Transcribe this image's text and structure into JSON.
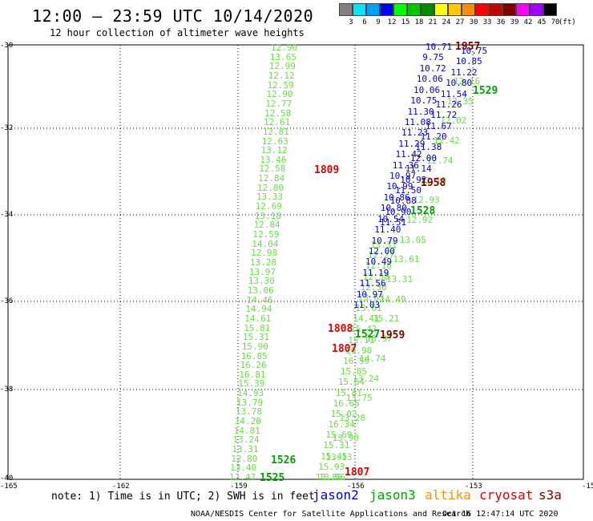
{
  "title": "12:00 – 23:59 UTC 10/14/2020",
  "subtitle": "12 hour collection of altimeter wave heights",
  "legend": {
    "unit": "(ft)",
    "bins": [
      {
        "label": "3",
        "color": "#808080"
      },
      {
        "label": "6",
        "color": "#00e6ff"
      },
      {
        "label": "9",
        "color": "#00a0ff"
      },
      {
        "label": "12",
        "color": "#0000ff"
      },
      {
        "label": "15",
        "color": "#00ff00"
      },
      {
        "label": "18",
        "color": "#00c800"
      },
      {
        "label": "21",
        "color": "#008c00"
      },
      {
        "label": "24",
        "color": "#ffff00"
      },
      {
        "label": "27",
        "color": "#ffc800"
      },
      {
        "label": "30",
        "color": "#ff8c00"
      },
      {
        "label": "33",
        "color": "#ff0000"
      },
      {
        "label": "36",
        "color": "#c80000"
      },
      {
        "label": "39",
        "color": "#800000"
      },
      {
        "label": "42",
        "color": "#ff00ff"
      },
      {
        "label": "45",
        "color": "#a000ff"
      },
      {
        "label": "70",
        "color": "#000000"
      }
    ]
  },
  "map": {
    "lat_labels": [
      "-30",
      "-32",
      "-34",
      "-36",
      "-38",
      "-40"
    ],
    "lon_labels": [
      "-165",
      "-162",
      "-159",
      "-156",
      "-153",
      "-150"
    ]
  },
  "colors": {
    "jason2": "#0000cc",
    "jason3": "#008c00",
    "altika": "#ff8c00",
    "cryosat": "#dd0000",
    "s3a": "#800000",
    "lightgreen": "#66dd44",
    "green": "#00a000"
  },
  "tracks": {
    "west": {
      "color": "lightgreen",
      "values": [
        "12.90",
        "13.65",
        "12.99",
        "12.12",
        "12.59",
        "12.90",
        "12.77",
        "12.58",
        "12.61",
        "12.81",
        "12.63",
        "13.12",
        "13.46",
        "12.58",
        "12.84",
        "12.80",
        "13.33",
        "12.69",
        "13.18",
        "12.84",
        "12.59",
        "14.04",
        "12.98",
        "13.28",
        "13.97",
        "13.30",
        "13.06",
        "14.46",
        "14.94",
        "14.61",
        "15.81",
        "15.31",
        "15.90",
        "16.85",
        "16.26",
        "16.81",
        "15.39",
        "14.93",
        "13.79",
        "13.78",
        "14.20",
        "14.81",
        "13.24",
        "13.31",
        "12.80",
        "13.40",
        "12.47"
      ]
    },
    "middle": {
      "color": "lightgreen",
      "values": [
        "13.31",
        "12.27",
        "12.16",
        "12.58",
        "12.30",
        "13.63",
        "13.61",
        "14.41",
        "15.42",
        "15.11",
        "16.90",
        "16.59",
        "15.85",
        "15.64",
        "15.81",
        "16.65",
        "15.02",
        "16.34",
        "15.69",
        "15.31",
        "15.45",
        "15.93",
        "13.86"
      ]
    },
    "east_green": {
      "color": "lightgreen",
      "values": [
        "12.16",
        "13.35",
        "12.02",
        "12.42",
        "12.74",
        "12.19",
        "12.93",
        "12.92",
        "13.05",
        "13.61",
        "13.31",
        "14.49",
        "15.21",
        "13.97",
        "14.74",
        "13.24",
        "13.75",
        "13.28",
        "13.90",
        "13.13",
        "13.56"
      ]
    },
    "east_blue": {
      "color": "jason2",
      "values": [
        "10.71",
        "9.75",
        "10.72",
        "10.06",
        "10.06",
        "10.75",
        "11.30",
        "11.08",
        "11.23",
        "11.29",
        "11.42",
        "11.36",
        "10.97",
        "10.99",
        "10.86",
        "10.80",
        "10.54",
        "11.40",
        "10.79",
        "12.00",
        "10.49",
        "11.19",
        "11.56",
        "10.97",
        "11.03"
      ]
    },
    "east_blue2": {
      "color": "jason2",
      "values": [
        "10.75",
        "10.85",
        "11.22",
        "10.80",
        "11.54",
        "11.26",
        "11.72",
        "11.67",
        "11.20",
        "11.38",
        "12.00",
        "11.14",
        "10.92",
        "11.50",
        "10.88",
        "10.90",
        "11.51"
      ]
    }
  },
  "time_labels": [
    {
      "text": "1957",
      "color": "s3a"
    },
    {
      "text": "1529",
      "color": "green"
    },
    {
      "text": "1809",
      "color": "cryosat"
    },
    {
      "text": "1958",
      "color": "s3a"
    },
    {
      "text": "1528",
      "color": "green"
    },
    {
      "text": "1808",
      "color": "cryosat"
    },
    {
      "text": "1527",
      "color": "green"
    },
    {
      "text": "1959",
      "color": "s3a"
    },
    {
      "text": "1807",
      "color": "cryosat"
    },
    {
      "text": "1526",
      "color": "green"
    },
    {
      "text": "1525",
      "color": "green"
    },
    {
      "text": "1807",
      "color": "cryosat"
    }
  ],
  "note": "note: 1) Time is in UTC; 2) SWH is in feet",
  "satellites": [
    {
      "name": "jason2",
      "color": "jason2"
    },
    {
      "name": "jason3",
      "color": "green"
    },
    {
      "name": "altika",
      "color": "altika"
    },
    {
      "name": "cryosat",
      "color": "cryosat"
    },
    {
      "name": "s3a",
      "color": "s3a"
    }
  ],
  "footer_left": "NOAA/NESDIS Center for Satellite Applications and Research",
  "footer_right": "Oct 16 12:47:14 UTC 2020"
}
